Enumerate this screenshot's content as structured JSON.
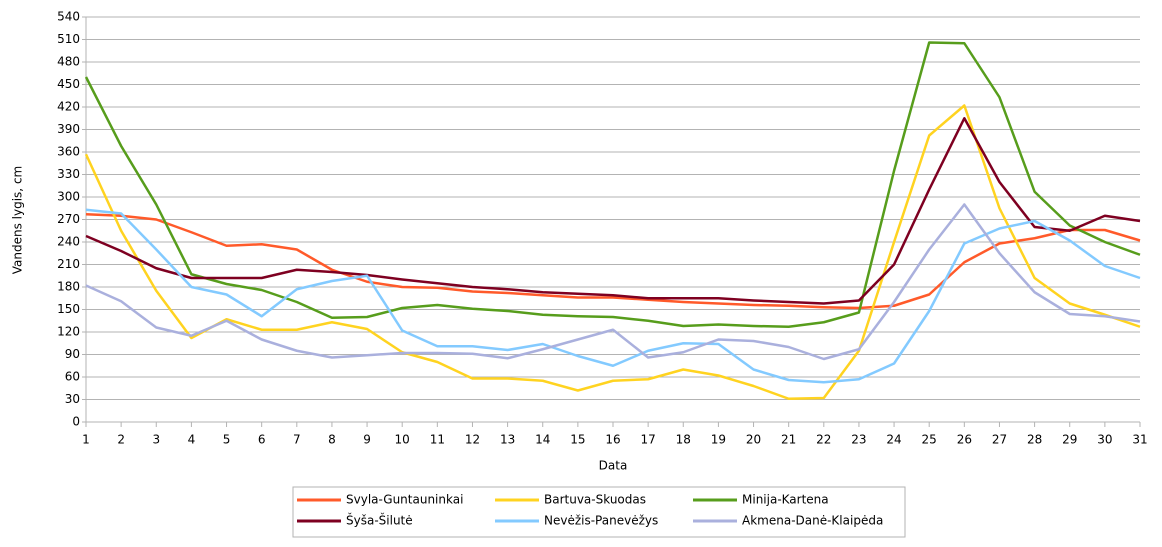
{
  "chart_data": {
    "type": "line",
    "x_label": "Data",
    "y_label": "Vandens lygis, cm",
    "x": [
      1,
      2,
      3,
      4,
      5,
      6,
      7,
      8,
      9,
      10,
      11,
      12,
      13,
      14,
      15,
      16,
      17,
      18,
      19,
      20,
      21,
      22,
      23,
      24,
      25,
      26,
      27,
      28,
      29,
      30,
      31
    ],
    "xlim": [
      1,
      31
    ],
    "xticks": [
      1,
      2,
      3,
      4,
      5,
      6,
      7,
      8,
      9,
      10,
      11,
      12,
      13,
      14,
      15,
      16,
      17,
      18,
      19,
      20,
      21,
      22,
      23,
      24,
      25,
      26,
      27,
      28,
      29,
      30,
      31
    ],
    "ylim": [
      0,
      540
    ],
    "yticks": [
      0,
      30,
      60,
      90,
      120,
      150,
      180,
      210,
      240,
      270,
      300,
      330,
      360,
      390,
      420,
      450,
      480,
      510,
      540
    ],
    "grid": true,
    "legend": "bottom",
    "series": [
      {
        "name": "Svyla-Guntauninkai",
        "color": "#ff5a2a",
        "values": [
          277,
          275,
          270,
          253,
          235,
          237,
          230,
          203,
          187,
          180,
          179,
          174,
          172,
          169,
          166,
          166,
          163,
          160,
          158,
          156,
          155,
          153,
          152,
          155,
          170,
          213,
          238,
          245,
          256,
          256,
          242
        ]
      },
      {
        "name": "Bartuva-Skuodas",
        "color": "#ffd320",
        "values": [
          357,
          255,
          175,
          112,
          137,
          123,
          123,
          133,
          124,
          93,
          80,
          58,
          58,
          55,
          42,
          55,
          57,
          70,
          62,
          48,
          31,
          32,
          95,
          240,
          382,
          422,
          285,
          192,
          158,
          143,
          127
        ]
      },
      {
        "name": "Minija-Kartena",
        "color": "#579d1c",
        "values": [
          460,
          368,
          290,
          197,
          184,
          176,
          160,
          139,
          140,
          152,
          156,
          151,
          148,
          143,
          141,
          140,
          135,
          128,
          130,
          128,
          127,
          133,
          146,
          335,
          506,
          505,
          433,
          307,
          262,
          240,
          223
        ]
      },
      {
        "name": "Šyša-Šilutė",
        "color": "#7e0021",
        "values": [
          248,
          228,
          205,
          192,
          192,
          192,
          203,
          200,
          196,
          190,
          185,
          180,
          177,
          173,
          171,
          169,
          165,
          165,
          165,
          162,
          160,
          158,
          162,
          210,
          310,
          405,
          320,
          260,
          255,
          275,
          268
        ]
      },
      {
        "name": "Nevėžis-Panevėžys",
        "color": "#83caff",
        "values": [
          283,
          278,
          230,
          180,
          170,
          141,
          177,
          188,
          195,
          122,
          101,
          101,
          96,
          104,
          88,
          75,
          95,
          105,
          104,
          70,
          56,
          53,
          57,
          78,
          148,
          238,
          258,
          268,
          242,
          208,
          192
        ]
      },
      {
        "name": "Akmena-Danė-Klaipėda",
        "color": "#aab0dd",
        "values": [
          182,
          161,
          126,
          115,
          135,
          110,
          95,
          86,
          89,
          92,
          92,
          91,
          85,
          97,
          110,
          123,
          86,
          93,
          110,
          108,
          100,
          84,
          97,
          160,
          230,
          290,
          225,
          173,
          144,
          141,
          134
        ]
      }
    ]
  }
}
